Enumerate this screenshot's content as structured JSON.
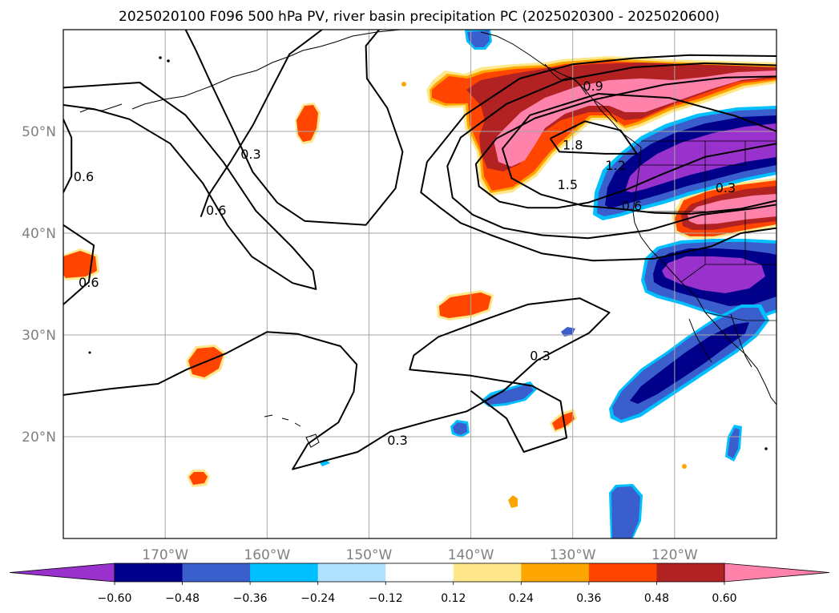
{
  "chart_data": {
    "type": "map",
    "title": "2025020100 F096 500 hPa PV, river basin precipitation PC (2025020300 - 2025020600)",
    "lon_range": [
      -180,
      -110
    ],
    "lat_range": [
      10,
      60
    ],
    "grid": true,
    "x_ticks": [
      {
        "value": -170,
        "label": "170°W"
      },
      {
        "value": -160,
        "label": "160°W"
      },
      {
        "value": -150,
        "label": "150°W"
      },
      {
        "value": -140,
        "label": "140°W"
      },
      {
        "value": -130,
        "label": "130°W"
      },
      {
        "value": -120,
        "label": "120°W"
      }
    ],
    "y_ticks": [
      {
        "value": 50,
        "label": "50°N"
      },
      {
        "value": 40,
        "label": "40°N"
      },
      {
        "value": 30,
        "label": "30°N"
      },
      {
        "value": 20,
        "label": "20°N"
      }
    ],
    "colorbar": {
      "position": "bottom",
      "extend": "both",
      "levels": [
        -0.6,
        -0.48,
        -0.36,
        -0.24,
        -0.12,
        0.12,
        0.24,
        0.36,
        0.48,
        0.6
      ],
      "level_labels": [
        "−0.60",
        "−0.48",
        "−0.36",
        "−0.24",
        "−0.12",
        "0.12",
        "0.24",
        "0.36",
        "0.48",
        "0.60"
      ],
      "colors": [
        "#9932cc",
        "#00008b",
        "#3a5fcd",
        "#00bfff",
        "#b0e2ff",
        "#ffffff",
        "#ffe88c",
        "#ffa500",
        "#ff4500",
        "#b22222",
        "#ff82ab"
      ]
    },
    "contour_labels": [
      {
        "text": "0.9",
        "lon": -128.0,
        "lat": 54.5
      },
      {
        "text": "1.8",
        "lon": -130.0,
        "lat": 48.7
      },
      {
        "text": "1.5",
        "lon": -130.5,
        "lat": 44.8
      },
      {
        "text": "1.2",
        "lon": -125.8,
        "lat": 46.7
      },
      {
        "text": "0.6",
        "lon": -124.2,
        "lat": 42.7
      },
      {
        "text": "0.3",
        "lon": -115.0,
        "lat": 44.5
      },
      {
        "text": "0.3",
        "lon": -161.6,
        "lat": 47.8
      },
      {
        "text": "0.6",
        "lon": -165.0,
        "lat": 42.3
      },
      {
        "text": "0.6",
        "lon": -178.0,
        "lat": 45.6
      },
      {
        "text": "0.6",
        "lon": -177.5,
        "lat": 35.2
      },
      {
        "text": "0.3",
        "lon": -133.2,
        "lat": 28.0
      },
      {
        "text": "0.3",
        "lon": -147.2,
        "lat": 19.7
      }
    ],
    "pv_contours": [
      {
        "level": 0.3,
        "points": [
          [
            -154.6,
            60
          ],
          [
            -157.8,
            57.6
          ],
          [
            -159.5,
            54.3
          ],
          [
            -161.4,
            50.6
          ],
          [
            -163.6,
            47.0
          ],
          [
            -165.7,
            43.8
          ],
          [
            -166.5,
            41.6
          ]
        ]
      },
      {
        "level": 0.3,
        "points": [
          [
            -149,
            60
          ],
          [
            -150.3,
            58.4
          ],
          [
            -150.2,
            55.2
          ],
          [
            -148.2,
            52.3
          ],
          [
            -146.7,
            48.0
          ],
          [
            -147.4,
            44.4
          ],
          [
            -150.3,
            40.8
          ],
          [
            -156.3,
            41.2
          ],
          [
            -159.0,
            43.0
          ],
          [
            -161.4,
            46.0
          ],
          [
            -163.4,
            50.3
          ],
          [
            -165.4,
            54.5
          ],
          [
            -167.0,
            58.0
          ],
          [
            -168.0,
            60
          ]
        ]
      },
      {
        "level": 0.3,
        "points": [
          [
            -180,
            24.1
          ],
          [
            -175.4,
            24.7
          ],
          [
            -170.7,
            25.2
          ],
          [
            -167.9,
            26.6
          ],
          [
            -164.0,
            28.2
          ],
          [
            -160.0,
            30.3
          ],
          [
            -157.0,
            30.1
          ],
          [
            -152.8,
            28.9
          ],
          [
            -151.2,
            27.1
          ],
          [
            -151.5,
            24.4
          ],
          [
            -153.0,
            21.4
          ],
          [
            -156.0,
            19.3
          ],
          [
            -157.5,
            16.8
          ],
          [
            -154.5,
            17.6
          ],
          [
            -151.1,
            18.5
          ],
          [
            -147.9,
            20.5
          ],
          [
            -143.9,
            21.6
          ],
          [
            -140.4,
            22.5
          ],
          [
            -136.8,
            24.5
          ],
          [
            -133.5,
            27.5
          ],
          [
            -128.4,
            30.2
          ],
          [
            -126.4,
            32.2
          ],
          [
            -129.3,
            33.6
          ],
          [
            -134.4,
            33.0
          ],
          [
            -139.2,
            31.3
          ],
          [
            -143.2,
            29.8
          ],
          [
            -145.6,
            28.0
          ],
          [
            -146.0,
            26.6
          ],
          [
            -140.0,
            26.0
          ],
          [
            -134.0,
            25.0
          ],
          [
            -131.2,
            23.5
          ],
          [
            -130.6,
            19.9
          ],
          [
            -134.8,
            18.5
          ],
          [
            -136.5,
            21.8
          ],
          [
            -140.0,
            24.5
          ]
        ]
      },
      {
        "level": 0.6,
        "points": [
          [
            -180,
            44.0
          ],
          [
            -179.2,
            45.6
          ],
          [
            -179.2,
            49.4
          ],
          [
            -180,
            51.2
          ]
        ]
      },
      {
        "level": 0.6,
        "points": [
          [
            -180,
            33.0
          ],
          [
            -177.5,
            35.2
          ],
          [
            -177.0,
            38.8
          ],
          [
            -180,
            40.8
          ]
        ]
      },
      {
        "level": 0.6,
        "points": [
          [
            -180,
            54.3
          ],
          [
            -172.5,
            54.8
          ],
          [
            -168.0,
            51.6
          ],
          [
            -164.3,
            47.0
          ],
          [
            -161.1,
            42.2
          ],
          [
            -157.5,
            38.6
          ],
          [
            -155.5,
            36.3
          ],
          [
            -155.2,
            34.5
          ],
          [
            -157.5,
            35.1
          ],
          [
            -161.5,
            37.7
          ],
          [
            -163.9,
            40.8
          ],
          [
            -166.3,
            44.9
          ],
          [
            -169.5,
            48.8
          ],
          [
            -173.5,
            51.2
          ],
          [
            -177.0,
            52.2
          ],
          [
            -180,
            52.6
          ]
        ]
      },
      {
        "level": 0.6,
        "points": [
          [
            -110,
            43.2
          ],
          [
            -113.5,
            42.4
          ],
          [
            -118.5,
            41.9
          ],
          [
            -122.0,
            42.0
          ],
          [
            -125.5,
            42.4
          ],
          [
            -129.0,
            42.7
          ],
          [
            -133.1,
            43.8
          ],
          [
            -136.0,
            45.4
          ],
          [
            -136.9,
            48.3
          ],
          [
            -134.2,
            51.6
          ],
          [
            -127.5,
            53.7
          ],
          [
            -120.5,
            53.3
          ],
          [
            -114.0,
            51.5
          ],
          [
            -110,
            50.0
          ]
        ]
      },
      {
        "level": 0.9,
        "points": [
          [
            -110,
            57.4
          ],
          [
            -118.5,
            57.5
          ],
          [
            -124.0,
            57.2
          ],
          [
            -130.0,
            56.6
          ],
          [
            -135.2,
            55.2
          ],
          [
            -140.6,
            51.6
          ],
          [
            -144.3,
            47.0
          ],
          [
            -144.9,
            44.0
          ],
          [
            -143.0,
            42.5
          ],
          [
            -141.0,
            41.0
          ],
          [
            -138.0,
            39.8
          ],
          [
            -133.0,
            38.0
          ],
          [
            -128.0,
            37.3
          ],
          [
            -122.0,
            37.5
          ],
          [
            -116.4,
            38.7
          ],
          [
            -113.5,
            40.0
          ],
          [
            -110,
            40.5
          ]
        ]
      },
      {
        "level": 1.2,
        "points": [
          [
            -110,
            56.5
          ],
          [
            -117.0,
            56.7
          ],
          [
            -124.0,
            56.3
          ],
          [
            -131.0,
            55.0
          ],
          [
            -136.5,
            52.7
          ],
          [
            -141.0,
            49.4
          ],
          [
            -142.3,
            46.6
          ],
          [
            -141.8,
            43.5
          ],
          [
            -139.8,
            41.8
          ],
          [
            -136.8,
            40.5
          ],
          [
            -133.0,
            39.8
          ],
          [
            -128.5,
            39.5
          ],
          [
            -122.5,
            40.3
          ],
          [
            -117.4,
            41.8
          ],
          [
            -112.5,
            42.4
          ],
          [
            -110,
            42.8
          ]
        ]
      },
      {
        "level": 1.5,
        "points": [
          [
            -110,
            55.4
          ],
          [
            -115.0,
            55.3
          ],
          [
            -121.0,
            54.6
          ],
          [
            -128.0,
            53.1
          ],
          [
            -133.7,
            51.3
          ],
          [
            -137.5,
            49.3
          ],
          [
            -139.5,
            46.8
          ],
          [
            -139.2,
            44.6
          ],
          [
            -137.2,
            43.1
          ],
          [
            -134.4,
            42.5
          ],
          [
            -131.5,
            42.5
          ],
          [
            -128.5,
            43.0
          ],
          [
            -124.7,
            44.3
          ],
          [
            -121.2,
            45.8
          ],
          [
            -117.0,
            47.5
          ],
          [
            -110,
            48.8
          ]
        ]
      },
      {
        "level": 1.8,
        "points": [
          [
            -132.2,
            49.3
          ],
          [
            -128.8,
            51.0
          ],
          [
            -125.3,
            50.1
          ],
          [
            -123.7,
            47.8
          ],
          [
            -126.8,
            47.8
          ],
          [
            -131.3,
            48.0
          ],
          [
            -132.2,
            49.3
          ]
        ]
      }
    ]
  }
}
